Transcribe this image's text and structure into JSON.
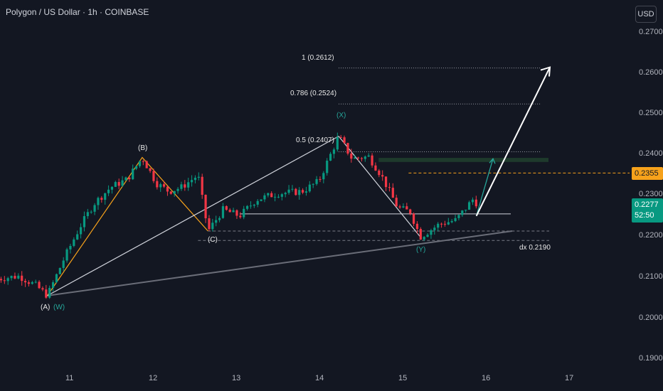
{
  "header": {
    "title": "Polygon / US Dollar · 1h · COINBASE"
  },
  "currency": "USD",
  "price_scale": {
    "ticks": [
      "0.2700",
      "0.2600",
      "0.2500",
      "0.2400",
      "0.2300",
      "0.2200",
      "0.2100",
      "0.2000",
      "0.1900"
    ],
    "current_price": "0.2277",
    "countdown": "52:50",
    "level_price": "0.2355"
  },
  "time_axis": {
    "ticks": [
      "11",
      "12",
      "13",
      "14",
      "15",
      "16",
      "17"
    ]
  },
  "colors": {
    "up": "#089981",
    "down": "#f23645",
    "fib": "#ffffff",
    "orange": "#f7a21b",
    "teal": "#26a69a",
    "background": "#131722"
  },
  "annotations": {
    "fib_1": "1 (0.2612)",
    "fib_0786": "0.786 (0.2524)",
    "fib_05": "0.5 (0.2407)",
    "wave_A": "(A)",
    "wave_W": "(W)",
    "wave_B": "(B)",
    "wave_C": "(C)",
    "wave_X": "(X)",
    "wave_Y": "(Y)",
    "dx_label": "dx  0.2190"
  },
  "chart_data": {
    "type": "candlestick",
    "title": "Polygon / US Dollar · 1h · COINBASE",
    "ylim": [
      0.185,
      0.275
    ],
    "y_ticks": [
      0.27,
      0.26,
      0.25,
      0.24,
      0.23,
      0.22,
      0.21,
      0.2,
      0.19
    ],
    "x_ticks": [
      "11",
      "12",
      "13",
      "14",
      "15",
      "16",
      "17"
    ],
    "grid": false,
    "fib_levels": [
      {
        "label": "1 (0.2612)",
        "value": 0.2612
      },
      {
        "label": "0.786 (0.2524)",
        "value": 0.2524
      },
      {
        "label": "0.5 (0.2407)",
        "value": 0.2407
      }
    ],
    "horizontal_levels": {
      "orange_dashed": 0.2355,
      "current": 0.2277,
      "dx": 0.219
    },
    "wave_points": [
      {
        "label": "(A)",
        "day": 10.74,
        "price": 0.2055
      },
      {
        "label": "(W)",
        "day": 10.74,
        "price": 0.2055
      },
      {
        "label": "(B)",
        "day": 11.88,
        "price": 0.2393
      },
      {
        "label": "(C)",
        "day": 12.67,
        "price": 0.2213
      },
      {
        "label": "(X)",
        "day": 14.24,
        "price": 0.2445
      },
      {
        "label": "(Y)",
        "day": 15.22,
        "price": 0.2199
      }
    ],
    "path_points": [
      [
        10.1,
        0.2095
      ],
      [
        10.4,
        0.2103
      ],
      [
        10.6,
        0.208
      ],
      [
        10.74,
        0.2055
      ],
      [
        10.95,
        0.215
      ],
      [
        11.15,
        0.223
      ],
      [
        11.3,
        0.228
      ],
      [
        11.5,
        0.232
      ],
      [
        11.7,
        0.234
      ],
      [
        11.88,
        0.2393
      ],
      [
        12.05,
        0.233
      ],
      [
        12.2,
        0.231
      ],
      [
        12.35,
        0.232
      ],
      [
        12.55,
        0.235
      ],
      [
        12.67,
        0.2213
      ],
      [
        12.85,
        0.2265
      ],
      [
        13.05,
        0.225
      ],
      [
        13.25,
        0.229
      ],
      [
        13.5,
        0.2305
      ],
      [
        13.8,
        0.231
      ],
      [
        14.0,
        0.2335
      ],
      [
        14.24,
        0.2445
      ],
      [
        14.4,
        0.239
      ],
      [
        14.6,
        0.2395
      ],
      [
        14.75,
        0.235
      ],
      [
        14.95,
        0.227
      ],
      [
        15.1,
        0.226
      ],
      [
        15.22,
        0.2199
      ],
      [
        15.45,
        0.223
      ],
      [
        15.65,
        0.224
      ],
      [
        15.85,
        0.229
      ],
      [
        15.92,
        0.2277
      ]
    ]
  }
}
